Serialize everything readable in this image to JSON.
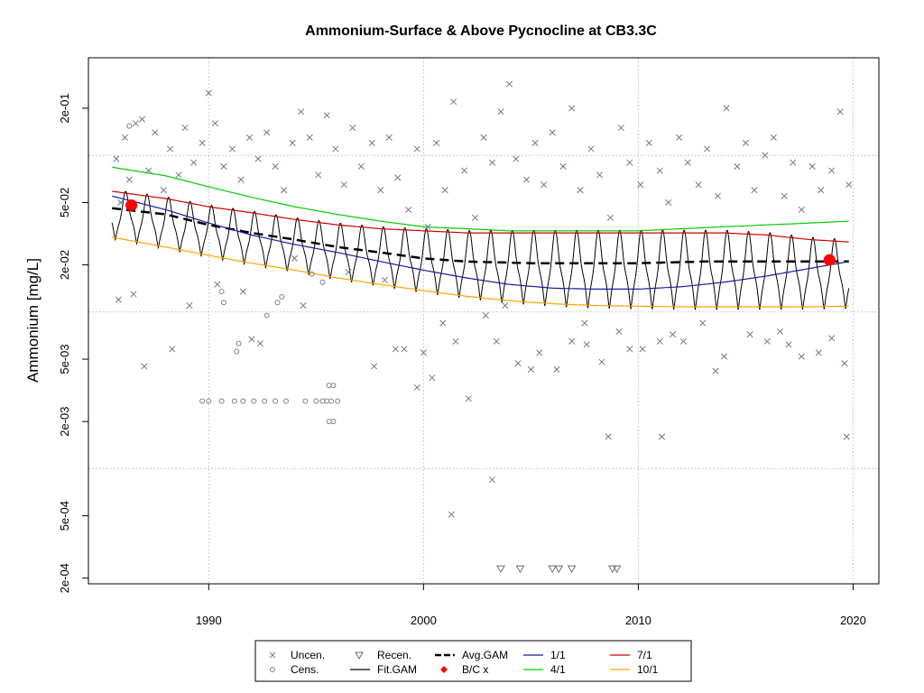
{
  "chart_data": {
    "type": "scatter",
    "title": "Ammonium-Surface & Above Pycnocline at CB3.3C",
    "xlabel": "",
    "ylabel": "Ammonium [mg/L]",
    "y_scale": "log",
    "xlim": [
      1984.4,
      2021.2
    ],
    "ylim": [
      0.000184,
      0.42
    ],
    "grid": true,
    "x_ticks": [
      1990,
      2000,
      2010,
      2020
    ],
    "x_tick_labels": [
      "1990",
      "2000",
      "2010",
      "2020"
    ],
    "y_ticks": [
      0.0002,
      0.0005,
      0.002,
      0.005,
      0.02,
      0.05,
      0.2
    ],
    "y_tick_labels": [
      "2e-04",
      "5e-04",
      "2e-03",
      "5e-03",
      "2e-02",
      "5e-02",
      "2e-01"
    ],
    "y_grid": [
      0.001,
      0.01,
      0.1
    ],
    "legend_position": "bottom",
    "legend": [
      {
        "label": "Uncen.",
        "symbol": "cross",
        "color": "#6e7b8b"
      },
      {
        "label": "Cens.",
        "symbol": "circle",
        "color": "#808080"
      },
      {
        "label": "Recen.",
        "symbol": "triangle-down",
        "color": "#6e6e6e"
      },
      {
        "label": "Fit.GAM",
        "symbol": "line",
        "color": "#000000"
      },
      {
        "label": "Avg.GAM",
        "symbol": "dashed",
        "color": "#000000"
      },
      {
        "label": "B/C x",
        "symbol": "diamond",
        "color": "#ff0000"
      },
      {
        "label": "1/1",
        "symbol": "line",
        "color": "#1a1a9c"
      },
      {
        "label": "4/1",
        "symbol": "line",
        "color": "#00cc00"
      },
      {
        "label": "7/1",
        "symbol": "line",
        "color": "#cc0000"
      },
      {
        "label": "10/1",
        "symbol": "line",
        "color": "#ffa500"
      }
    ],
    "series": [
      {
        "name": "Avg.GAM",
        "color": "#000000",
        "style": "dashed",
        "x": [
          1985.5,
          1988,
          1990,
          1992,
          1994,
          1996,
          1998,
          2000,
          2002,
          2005,
          2008,
          2010,
          2013,
          2016,
          2018,
          2019.8
        ],
        "y": [
          0.046,
          0.042,
          0.036,
          0.032,
          0.029,
          0.026,
          0.024,
          0.022,
          0.021,
          0.0205,
          0.0205,
          0.0205,
          0.021,
          0.021,
          0.021,
          0.021
        ]
      },
      {
        "name": "1/1",
        "color": "#1a1a9c",
        "style": "solid",
        "x": [
          1985.5,
          1988,
          1990,
          1992,
          1994,
          1996,
          1998,
          2000,
          2002,
          2004,
          2006,
          2008,
          2010,
          2012,
          2014,
          2016,
          2018,
          2019.8
        ],
        "y": [
          0.055,
          0.045,
          0.037,
          0.031,
          0.027,
          0.024,
          0.021,
          0.0185,
          0.0165,
          0.015,
          0.0142,
          0.014,
          0.014,
          0.0145,
          0.0155,
          0.017,
          0.019,
          0.021
        ]
      },
      {
        "name": "4/1",
        "color": "#00cc00",
        "style": "solid",
        "x": [
          1985.5,
          1988,
          1990,
          1992,
          1994,
          1996,
          1998,
          2000,
          2002,
          2004,
          2006,
          2008,
          2010,
          2012,
          2014,
          2016,
          2018,
          2019.8
        ],
        "y": [
          0.084,
          0.074,
          0.063,
          0.054,
          0.047,
          0.042,
          0.038,
          0.035,
          0.034,
          0.033,
          0.033,
          0.033,
          0.033,
          0.034,
          0.035,
          0.036,
          0.037,
          0.038
        ]
      },
      {
        "name": "7/1",
        "color": "#cc0000",
        "style": "solid",
        "x": [
          1985.5,
          1988,
          1990,
          1992,
          1994,
          1996,
          1998,
          2000,
          2002,
          2004,
          2006,
          2008,
          2010,
          2012,
          2014,
          2016,
          2018,
          2019.8
        ],
        "y": [
          0.059,
          0.053,
          0.047,
          0.043,
          0.039,
          0.036,
          0.034,
          0.033,
          0.032,
          0.032,
          0.032,
          0.032,
          0.032,
          0.032,
          0.032,
          0.031,
          0.029,
          0.028
        ]
      },
      {
        "name": "10/1",
        "color": "#ffa500",
        "style": "solid",
        "x": [
          1985.5,
          1988,
          1990,
          1992,
          1994,
          1996,
          1998,
          2000,
          2002,
          2004,
          2006,
          2008,
          2010,
          2012,
          2014,
          2016,
          2018,
          2019.8
        ],
        "y": [
          0.03,
          0.026,
          0.023,
          0.0205,
          0.0185,
          0.0165,
          0.015,
          0.0137,
          0.0126,
          0.0118,
          0.0113,
          0.011,
          0.0109,
          0.0108,
          0.0108,
          0.0108,
          0.0108,
          0.0109
        ]
      }
    ],
    "fit_gam": {
      "name": "Fit.GAM",
      "color": "#000000",
      "x_start": 1985.5,
      "x_end": 2019.8,
      "note_period_years": 1
    },
    "bc_points": {
      "name": "B/C x",
      "color": "#ff0000",
      "x": [
        1986.4,
        2018.9
      ],
      "y": [
        0.048,
        0.0215
      ]
    },
    "recensored_points": {
      "name": "Recen.",
      "y": 0.00023,
      "x": [
        2003.6,
        2004.5,
        2006.0,
        2006.3,
        2006.9,
        2008.8,
        2009.0
      ]
    },
    "censored_points": {
      "name": "Cens.",
      "points": [
        [
          1989.7,
          0.0027
        ],
        [
          1990.0,
          0.0027
        ],
        [
          1990.6,
          0.0027
        ],
        [
          1991.2,
          0.0027
        ],
        [
          1991.6,
          0.0027
        ],
        [
          1992.1,
          0.0027
        ],
        [
          1992.6,
          0.0027
        ],
        [
          1993.1,
          0.0027
        ],
        [
          1993.6,
          0.0027
        ],
        [
          1994.5,
          0.0027
        ],
        [
          1995.0,
          0.0027
        ],
        [
          1995.3,
          0.0027
        ],
        [
          1995.5,
          0.0027
        ],
        [
          1995.7,
          0.0027
        ],
        [
          1996.0,
          0.0027
        ],
        [
          1995.6,
          0.002
        ],
        [
          1995.8,
          0.002
        ],
        [
          1995.6,
          0.0034
        ],
        [
          1995.8,
          0.0034
        ],
        [
          1991.3,
          0.0056
        ],
        [
          1991.4,
          0.0063
        ],
        [
          1990.6,
          0.0135
        ],
        [
          1990.7,
          0.0115
        ],
        [
          1993.2,
          0.0115
        ],
        [
          1992.7,
          0.0095
        ],
        [
          1993.4,
          0.0125
        ],
        [
          1986.3,
          0.154
        ],
        [
          1995.3,
          0.0155
        ],
        [
          1994.8,
          0.0175
        ]
      ]
    },
    "uncensored_points": {
      "name": "Uncen.",
      "points": [
        [
          1985.7,
          0.095
        ],
        [
          1985.9,
          0.05
        ],
        [
          1986.1,
          0.13
        ],
        [
          1986.3,
          0.07
        ],
        [
          1986.6,
          0.16
        ],
        [
          1986.9,
          0.17
        ],
        [
          1987.2,
          0.08
        ],
        [
          1987.5,
          0.14
        ],
        [
          1987.9,
          0.06
        ],
        [
          1988.2,
          0.11
        ],
        [
          1988.6,
          0.075
        ],
        [
          1988.9,
          0.15
        ],
        [
          1989.3,
          0.09
        ],
        [
          1989.7,
          0.12
        ],
        [
          1990.0,
          0.25
        ],
        [
          1990.3,
          0.16
        ],
        [
          1990.7,
          0.085
        ],
        [
          1991.1,
          0.11
        ],
        [
          1991.5,
          0.07
        ],
        [
          1991.9,
          0.13
        ],
        [
          1992.3,
          0.095
        ],
        [
          1992.7,
          0.14
        ],
        [
          1993.1,
          0.085
        ],
        [
          1993.5,
          0.06
        ],
        [
          1993.9,
          0.12
        ],
        [
          1994.3,
          0.19
        ],
        [
          1994.7,
          0.13
        ],
        [
          1995.1,
          0.075
        ],
        [
          1995.5,
          0.18
        ],
        [
          1995.9,
          0.11
        ],
        [
          1996.3,
          0.065
        ],
        [
          1996.7,
          0.15
        ],
        [
          1997.1,
          0.085
        ],
        [
          1997.6,
          0.12
        ],
        [
          1998.0,
          0.06
        ],
        [
          1998.4,
          0.13
        ],
        [
          1998.8,
          0.072
        ],
        [
          1999.3,
          0.045
        ],
        [
          1999.7,
          0.11
        ],
        [
          2000.2,
          0.035
        ],
        [
          2000.6,
          0.12
        ],
        [
          2001.0,
          0.06
        ],
        [
          2001.4,
          0.22
        ],
        [
          2001.9,
          0.08
        ],
        [
          2002.4,
          0.04
        ],
        [
          2002.8,
          0.13
        ],
        [
          2003.2,
          0.09
        ],
        [
          2003.6,
          0.19
        ],
        [
          2004.0,
          0.285
        ],
        [
          2004.3,
          0.095
        ],
        [
          2004.8,
          0.07
        ],
        [
          2005.2,
          0.12
        ],
        [
          2005.6,
          0.065
        ],
        [
          2006.0,
          0.14
        ],
        [
          2006.5,
          0.085
        ],
        [
          2006.9,
          0.2
        ],
        [
          2007.3,
          0.06
        ],
        [
          2007.8,
          0.11
        ],
        [
          2008.2,
          0.075
        ],
        [
          2008.7,
          0.04
        ],
        [
          2009.2,
          0.15
        ],
        [
          2009.6,
          0.09
        ],
        [
          2010.1,
          0.065
        ],
        [
          2010.5,
          0.12
        ],
        [
          2011.0,
          0.08
        ],
        [
          2011.4,
          0.05
        ],
        [
          2011.9,
          0.13
        ],
        [
          2012.3,
          0.09
        ],
        [
          2012.8,
          0.065
        ],
        [
          2013.2,
          0.11
        ],
        [
          2013.7,
          0.055
        ],
        [
          2014.1,
          0.2
        ],
        [
          2014.6,
          0.085
        ],
        [
          2015.0,
          0.12
        ],
        [
          2015.4,
          0.06
        ],
        [
          2015.9,
          0.1
        ],
        [
          2016.3,
          0.13
        ],
        [
          2016.8,
          0.055
        ],
        [
          2017.2,
          0.09
        ],
        [
          2017.6,
          0.045
        ],
        [
          2018.1,
          0.085
        ],
        [
          2018.5,
          0.06
        ],
        [
          2019.0,
          0.08
        ],
        [
          2019.4,
          0.19
        ],
        [
          2019.8,
          0.065
        ],
        [
          1985.8,
          0.012
        ],
        [
          1986.5,
          0.013
        ],
        [
          1987.0,
          0.0045
        ],
        [
          1988.3,
          0.0058
        ],
        [
          1989.1,
          0.011
        ],
        [
          1990.4,
          0.015
        ],
        [
          1991.6,
          0.0135
        ],
        [
          1992.0,
          0.0067
        ],
        [
          1992.4,
          0.0063
        ],
        [
          1994.4,
          0.011
        ],
        [
          1997.7,
          0.0045
        ],
        [
          1998.7,
          0.0058
        ],
        [
          1999.1,
          0.0058
        ],
        [
          1999.7,
          0.0033
        ],
        [
          2000.0,
          0.0055
        ],
        [
          2000.4,
          0.0038
        ],
        [
          2000.9,
          0.0085
        ],
        [
          2001.5,
          0.0065
        ],
        [
          2002.1,
          0.0028
        ],
        [
          2002.9,
          0.0095
        ],
        [
          2003.2,
          0.00085
        ],
        [
          2003.4,
          0.0065
        ],
        [
          2004.4,
          0.0047
        ],
        [
          2005.0,
          0.0043
        ],
        [
          2005.4,
          0.0055
        ],
        [
          2006.2,
          0.0043
        ],
        [
          2006.9,
          0.0065
        ],
        [
          2007.6,
          0.0062
        ],
        [
          2008.3,
          0.0048
        ],
        [
          2008.6,
          0.0016
        ],
        [
          2009.1,
          0.0075
        ],
        [
          2009.6,
          0.0058
        ],
        [
          2010.2,
          0.0058
        ],
        [
          2011.0,
          0.0065
        ],
        [
          2011.1,
          0.0016
        ],
        [
          2012.1,
          0.0065
        ],
        [
          2013.0,
          0.0085
        ],
        [
          2013.6,
          0.0042
        ],
        [
          2014.0,
          0.0052
        ],
        [
          2015.2,
          0.0072
        ],
        [
          2016.0,
          0.0065
        ],
        [
          2016.6,
          0.0075
        ],
        [
          2017.0,
          0.0062
        ],
        [
          2017.6,
          0.0052
        ],
        [
          2018.4,
          0.0055
        ],
        [
          2019.0,
          0.0068
        ],
        [
          2019.6,
          0.0047
        ],
        [
          2019.7,
          0.0016
        ],
        [
          2001.3,
          0.00051
        ],
        [
          2007.5,
          0.0085
        ],
        [
          2011.6,
          0.0072
        ],
        [
          1994.0,
          0.022
        ],
        [
          1996.5,
          0.018
        ],
        [
          1998.2,
          0.016
        ],
        [
          2003.8,
          0.011
        ]
      ]
    }
  }
}
